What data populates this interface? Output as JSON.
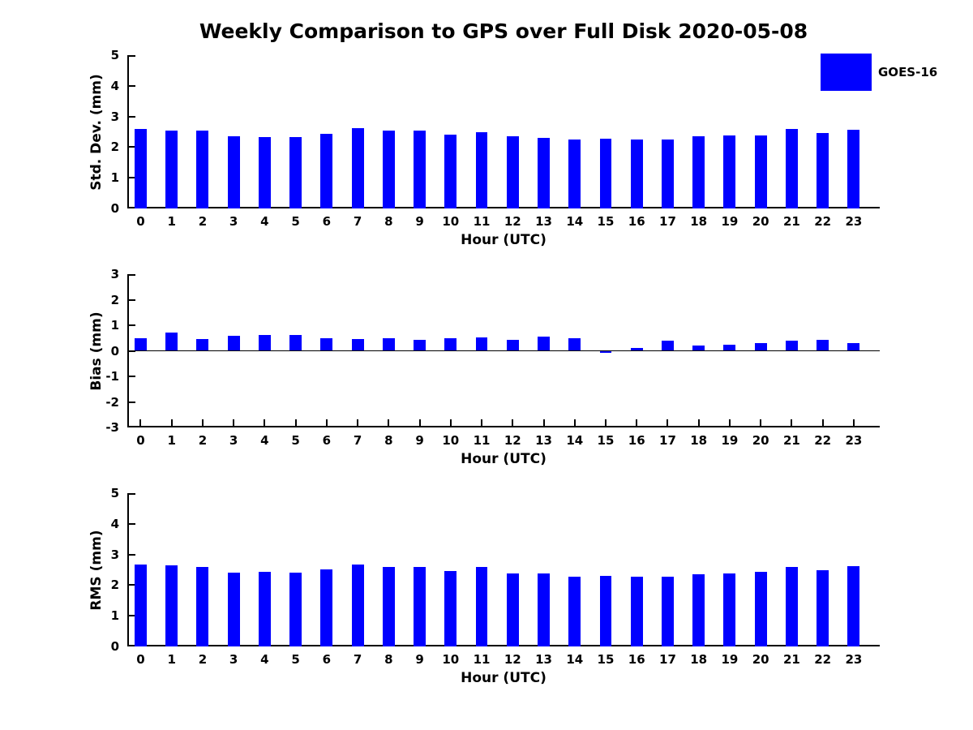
{
  "title": "Weekly Comparison to GPS over Full Disk 2020-05-08",
  "legend": {
    "label": "GOES-16",
    "color": "#0000ff"
  },
  "colors": {
    "bar": "#0000ff",
    "axis": "#000000",
    "background": "#ffffff"
  },
  "chart_data": [
    {
      "type": "bar",
      "name": "std-dev",
      "ylabel": "Std. Dev. (mm)",
      "xlabel": "Hour (UTC)",
      "categories": [
        0,
        1,
        2,
        3,
        4,
        5,
        6,
        7,
        8,
        9,
        10,
        11,
        12,
        13,
        14,
        15,
        16,
        17,
        18,
        19,
        20,
        21,
        22,
        23
      ],
      "values": [
        2.6,
        2.55,
        2.55,
        2.35,
        2.33,
        2.33,
        2.44,
        2.62,
        2.53,
        2.53,
        2.4,
        2.5,
        2.35,
        2.31,
        2.24,
        2.27,
        2.26,
        2.24,
        2.35,
        2.37,
        2.39,
        2.58,
        2.46,
        2.57
      ],
      "ylim": [
        0,
        5
      ],
      "yticks": [
        0,
        1,
        2,
        3,
        4,
        5
      ],
      "xlim": [
        -0.43,
        23.84
      ],
      "bar_width": 0.39,
      "bar_color": "#0000ff",
      "zero_line": false,
      "grid": false,
      "legend_entry": "GOES-16"
    },
    {
      "type": "bar",
      "name": "bias",
      "ylabel": "Bias (mm)",
      "xlabel": "Hour (UTC)",
      "categories": [
        0,
        1,
        2,
        3,
        4,
        5,
        6,
        7,
        8,
        9,
        10,
        11,
        12,
        13,
        14,
        15,
        16,
        17,
        18,
        19,
        20,
        21,
        22,
        23
      ],
      "values": [
        0.49,
        0.71,
        0.46,
        0.6,
        0.62,
        0.62,
        0.49,
        0.46,
        0.48,
        0.42,
        0.48,
        0.51,
        0.42,
        0.55,
        0.48,
        -0.07,
        0.11,
        0.4,
        0.21,
        0.23,
        0.31,
        0.4,
        0.43,
        0.29
      ],
      "ylim": [
        -3,
        3
      ],
      "yticks": [
        -3,
        -2,
        -1,
        0,
        1,
        2,
        3
      ],
      "xlim": [
        -0.43,
        23.84
      ],
      "bar_width": 0.39,
      "bar_color": "#0000ff",
      "zero_line": true,
      "grid": false,
      "legend_entry": "GOES-16"
    },
    {
      "type": "bar",
      "name": "rms",
      "ylabel": "RMS (mm)",
      "xlabel": "Hour (UTC)",
      "categories": [
        0,
        1,
        2,
        3,
        4,
        5,
        6,
        7,
        8,
        9,
        10,
        11,
        12,
        13,
        14,
        15,
        16,
        17,
        18,
        19,
        20,
        21,
        22,
        23
      ],
      "values": [
        2.67,
        2.64,
        2.6,
        2.42,
        2.44,
        2.42,
        2.52,
        2.68,
        2.58,
        2.58,
        2.46,
        2.58,
        2.39,
        2.39,
        2.28,
        2.3,
        2.28,
        2.28,
        2.36,
        2.38,
        2.43,
        2.6,
        2.5,
        2.61
      ],
      "ylim": [
        0,
        5
      ],
      "yticks": [
        0,
        1,
        2,
        3,
        4,
        5
      ],
      "xlim": [
        -0.43,
        23.84
      ],
      "bar_width": 0.39,
      "bar_color": "#0000ff",
      "zero_line": false,
      "grid": false,
      "legend_entry": "GOES-16"
    }
  ]
}
